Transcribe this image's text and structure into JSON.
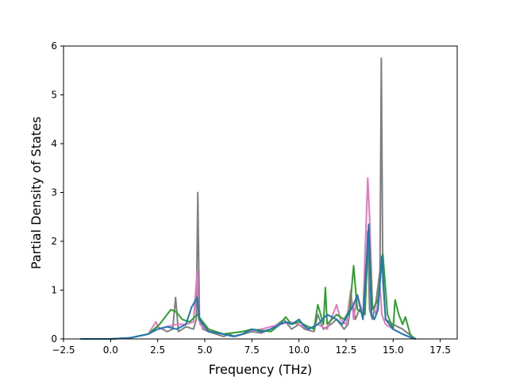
{
  "chart_data": {
    "type": "line",
    "title": "",
    "xlabel": "Frequency (THz)",
    "ylabel": "Partial Density of States",
    "xlim": [
      -2.5,
      18.4
    ],
    "ylim": [
      0,
      6
    ],
    "xticks": [
      "−2.5",
      "0.0",
      "2.5",
      "5.0",
      "7.5",
      "10.0",
      "12.5",
      "15.0",
      "17.5"
    ],
    "yticks": [
      "0",
      "1",
      "2",
      "3",
      "4",
      "5",
      "6"
    ],
    "grid": false,
    "legend": "none",
    "series": [
      {
        "color": "#7f7f7f",
        "x": [
          -1.6,
          0,
          1,
          2,
          2.5,
          3,
          3.3,
          3.45,
          3.6,
          4,
          4.4,
          4.55,
          4.63,
          4.72,
          4.9,
          5.2,
          6,
          6.3,
          6.6,
          7.5,
          8,
          8.5,
          9.2,
          9.6,
          10,
          10.3,
          10.8,
          11,
          11.3,
          11.7,
          12,
          12.4,
          12.6,
          12.8,
          13,
          13.2,
          13.5,
          13.65,
          13.75,
          13.9,
          14.1,
          14.3,
          14.37,
          14.45,
          14.6,
          15,
          15.5,
          16,
          16.2
        ],
        "y": [
          0,
          0,
          0.02,
          0.1,
          0.25,
          0.15,
          0.2,
          0.85,
          0.15,
          0.25,
          0.2,
          0.4,
          3.0,
          0.4,
          0.2,
          0.15,
          0.05,
          0.1,
          0.05,
          0.15,
          0.12,
          0.2,
          0.4,
          0.2,
          0.3,
          0.2,
          0.15,
          0.5,
          0.2,
          0.3,
          0.4,
          0.2,
          0.3,
          0.8,
          0.4,
          0.6,
          0.5,
          2.2,
          0.6,
          0.4,
          0.8,
          1.4,
          5.75,
          1.2,
          0.4,
          0.3,
          0.2,
          0.05,
          0
        ]
      },
      {
        "color": "#e377c2",
        "x": [
          -1.6,
          0,
          1,
          2,
          2.4,
          2.6,
          3,
          3.5,
          4,
          4.4,
          4.6,
          4.65,
          4.75,
          5,
          6,
          7,
          8,
          9,
          9.5,
          10,
          10.5,
          11,
          11.5,
          12,
          12.2,
          12.5,
          12.75,
          12.9,
          13.1,
          13.4,
          13.65,
          13.75,
          13.9,
          14.1,
          14.3,
          14.4,
          14.6,
          15,
          15.5,
          16,
          16.2
        ],
        "y": [
          0,
          0,
          0.02,
          0.1,
          0.35,
          0.2,
          0.25,
          0.3,
          0.3,
          0.35,
          1.4,
          0.5,
          0.3,
          0.2,
          0.1,
          0.15,
          0.2,
          0.3,
          0.35,
          0.3,
          0.2,
          0.3,
          0.2,
          0.7,
          0.4,
          0.3,
          1.0,
          0.4,
          0.9,
          0.5,
          3.3,
          2.5,
          0.7,
          0.5,
          1.1,
          0.5,
          0.3,
          0.2,
          0.1,
          0.02,
          0
        ]
      },
      {
        "color": "#2ca02c",
        "x": [
          -1.6,
          0,
          1,
          2,
          2.6,
          3,
          3.2,
          3.5,
          3.8,
          4.2,
          4.6,
          4.8,
          5.2,
          6,
          7,
          7.5,
          8.5,
          9,
          9.3,
          9.6,
          10,
          10.5,
          10.8,
          11,
          11.3,
          11.4,
          11.5,
          12,
          12.4,
          12.7,
          12.9,
          13.1,
          13.5,
          13.7,
          13.9,
          14.2,
          14.45,
          14.7,
          15,
          15.1,
          15.3,
          15.5,
          15.65,
          15.9,
          16.1
        ],
        "y": [
          0,
          0,
          0.02,
          0.1,
          0.3,
          0.5,
          0.6,
          0.55,
          0.4,
          0.35,
          0.5,
          0.4,
          0.2,
          0.1,
          0.15,
          0.2,
          0.15,
          0.3,
          0.45,
          0.3,
          0.35,
          0.25,
          0.2,
          0.7,
          0.3,
          1.05,
          0.3,
          0.5,
          0.4,
          0.6,
          1.5,
          0.6,
          0.5,
          2.3,
          0.6,
          0.8,
          1.75,
          0.5,
          0.2,
          0.8,
          0.5,
          0.3,
          0.45,
          0.1,
          0
        ]
      },
      {
        "color": "#1f77b4",
        "x": [
          -1.6,
          0,
          1,
          2,
          2.5,
          3,
          3.5,
          4,
          4.3,
          4.6,
          4.7,
          4.9,
          5.2,
          6,
          6.5,
          7,
          7.5,
          8,
          8.5,
          9,
          9.3,
          9.6,
          10,
          10.2,
          10.5,
          11,
          11.5,
          12,
          12.3,
          12.6,
          12.9,
          13.1,
          13.4,
          13.7,
          13.85,
          14,
          14.2,
          14.4,
          14.6,
          15,
          15.5,
          16,
          16.2
        ],
        "y": [
          0,
          0,
          0.02,
          0.1,
          0.2,
          0.25,
          0.2,
          0.3,
          0.65,
          0.85,
          0.4,
          0.3,
          0.15,
          0.1,
          0.05,
          0.1,
          0.2,
          0.15,
          0.2,
          0.3,
          0.35,
          0.3,
          0.4,
          0.3,
          0.2,
          0.3,
          0.5,
          0.4,
          0.3,
          0.5,
          0.7,
          0.9,
          0.4,
          2.35,
          0.5,
          0.4,
          0.6,
          1.7,
          0.4,
          0.2,
          0.1,
          0.02,
          0
        ]
      }
    ]
  }
}
